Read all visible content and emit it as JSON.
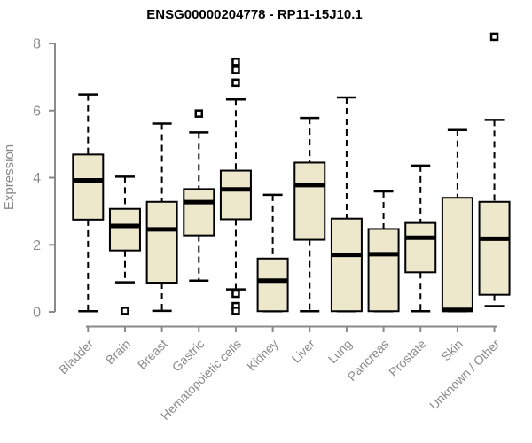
{
  "title": "ENSG00000204778 - RP11-15J10.1",
  "colors": {
    "background": "#ffffff",
    "box_fill": "#EDE7CB",
    "box_border": "#000000",
    "median": "#000000",
    "whisker": "#000000",
    "axis": "#8a8a8a",
    "tick_text": "#8a8a8a",
    "title_text": "#000000"
  },
  "chart_data": {
    "type": "boxplot",
    "title": "ENSG00000204778 - RP11-15J10.1",
    "xlabel": "",
    "ylabel": "Expression",
    "ylim": [
      0,
      8.2
    ],
    "yticks": [
      0,
      2,
      4,
      6,
      8
    ],
    "grid": false,
    "legend": "none",
    "categories": [
      "Bladder",
      "Brain",
      "Breast",
      "Gastric",
      "Hematopoietic cells",
      "Kidney",
      "Liver",
      "Lung",
      "Pancreas",
      "Prostate",
      "Skin",
      "Unknown / Other"
    ],
    "series": [
      {
        "name": "Bladder",
        "low": 0.02,
        "q1": 2.75,
        "median": 3.92,
        "q3": 4.69,
        "high": 6.48,
        "outliers": []
      },
      {
        "name": "Brain",
        "low": 0.88,
        "q1": 1.83,
        "median": 2.56,
        "q3": 3.07,
        "high": 4.03,
        "outliers": [
          0.03
        ]
      },
      {
        "name": "Breast",
        "low": 0.03,
        "q1": 0.87,
        "median": 2.46,
        "q3": 3.28,
        "high": 5.61,
        "outliers": []
      },
      {
        "name": "Gastric",
        "low": 0.93,
        "q1": 2.28,
        "median": 3.27,
        "q3": 3.66,
        "high": 5.35,
        "outliers": [
          5.91
        ]
      },
      {
        "name": "Hematopoietic cells",
        "low": 0.67,
        "q1": 2.76,
        "median": 3.65,
        "q3": 4.21,
        "high": 6.33,
        "outliers": [
          7.45,
          7.21,
          6.83,
          0.54,
          0.17,
          0.03
        ]
      },
      {
        "name": "Kidney",
        "low": 0.02,
        "q1": 0.02,
        "median": 0.93,
        "q3": 1.59,
        "high": 3.49,
        "outliers": []
      },
      {
        "name": "Liver",
        "low": 0.02,
        "q1": 2.15,
        "median": 3.78,
        "q3": 4.45,
        "high": 5.78,
        "outliers": []
      },
      {
        "name": "Lung",
        "low": 0.02,
        "q1": 0.02,
        "median": 1.7,
        "q3": 2.78,
        "high": 6.39,
        "outliers": []
      },
      {
        "name": "Pancreas",
        "low": 0.02,
        "q1": 0.02,
        "median": 1.72,
        "q3": 2.47,
        "high": 3.59,
        "outliers": []
      },
      {
        "name": "Prostate",
        "low": 0.02,
        "q1": 1.18,
        "median": 2.21,
        "q3": 2.65,
        "high": 4.36,
        "outliers": []
      },
      {
        "name": "Skin",
        "low": 0.02,
        "q1": 0.02,
        "median": 0.06,
        "q3": 3.4,
        "high": 5.42,
        "outliers": []
      },
      {
        "name": "Unknown / Other",
        "low": 0.17,
        "q1": 0.51,
        "median": 2.18,
        "q3": 3.28,
        "high": 5.72,
        "outliers": [
          8.2
        ]
      }
    ]
  }
}
